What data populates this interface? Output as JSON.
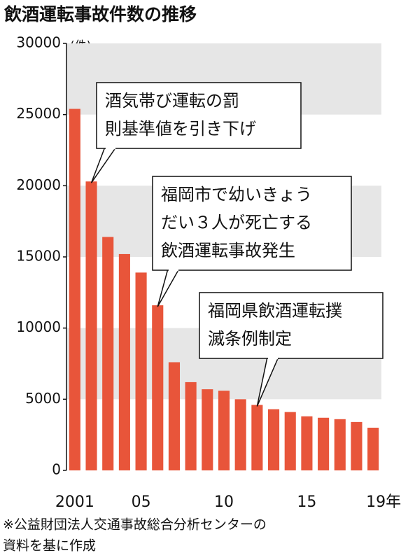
{
  "chart_data": {
    "type": "bar",
    "title": "飲酒運転事故件数の推移",
    "y_unit": "(件)",
    "categories": [
      "2001",
      null,
      null,
      null,
      "05",
      null,
      null,
      null,
      null,
      "10",
      null,
      null,
      null,
      null,
      "15",
      null,
      null,
      null,
      "19年"
    ],
    "values": [
      25400,
      20300,
      16400,
      15200,
      13900,
      11600,
      7600,
      6200,
      5700,
      5600,
      5000,
      4600,
      4300,
      4100,
      3800,
      3700,
      3600,
      3400,
      3000
    ],
    "color": "#e8553a",
    "ylim": [
      0,
      30000
    ],
    "yticks": [
      0,
      5000,
      10000,
      15000,
      20000,
      25000,
      30000
    ],
    "banded_grid": true,
    "band_color": "#e6e6e6",
    "annotations": [
      {
        "lines": [
          "酒気帯び運転の罰",
          "則基準値を引き下げ"
        ]
      },
      {
        "lines": [
          "福岡市で幼いきょう",
          "だい３人が死亡する",
          "飲酒運転事故発生"
        ]
      },
      {
        "lines": [
          "福岡県飲酒運転撲",
          "滅条例制定"
        ]
      }
    ],
    "source_lines": [
      "※公益財団法人交通事故総合分析センターの",
      "資料を基に作成"
    ]
  }
}
